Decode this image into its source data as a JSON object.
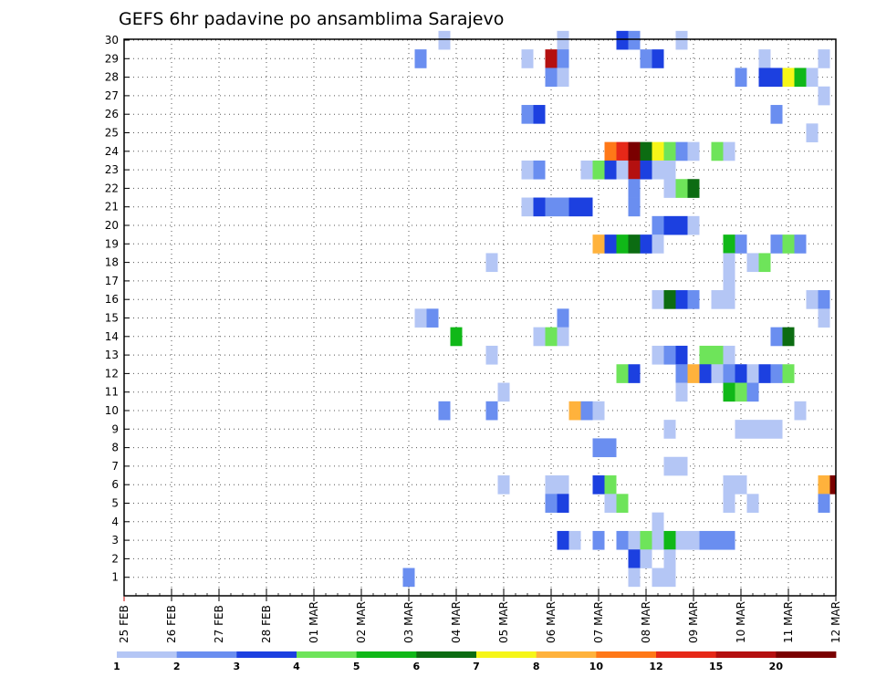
{
  "chart_data": {
    "type": "heatmap",
    "title": "GEFS 6hr padavine po ansamblima Sarajevo",
    "xlabel": "",
    "ylabel": "",
    "y_ticks": [
      "1",
      "2",
      "3",
      "4",
      "5",
      "6",
      "7",
      "8",
      "9",
      "10",
      "11",
      "12",
      "13",
      "14",
      "15",
      "16",
      "17",
      "18",
      "19",
      "20",
      "21",
      "22",
      "23",
      "24",
      "25",
      "26",
      "27",
      "28",
      "29",
      "30"
    ],
    "x_ticks": [
      "25 FEB",
      "26 FEB",
      "27 FEB",
      "28 FEB",
      "01 MAR",
      "02 MAR",
      "03 MAR",
      "04 MAR",
      "05 MAR",
      "06 MAR",
      "07 MAR",
      "08 MAR",
      "09 MAR",
      "10 MAR",
      "11 MAR",
      "12 MAR"
    ],
    "x_range_steps": [
      0,
      60
    ],
    "steps_per_day": 4,
    "colorbar": {
      "labels": [
        "1",
        "2",
        "3",
        "4",
        "5",
        "6",
        "7",
        "8",
        "10",
        "12",
        "15",
        "20"
      ],
      "colors": [
        "#b4c6f5",
        "#6a8ef0",
        "#1c40e0",
        "#6ee45a",
        "#10b818",
        "#0c6c12",
        "#f6f618",
        "#ffb23c",
        "#ff7818",
        "#e62818",
        "#b41010",
        "#7a0000"
      ]
    },
    "units_note": "cells: member (1-30) x 6-hour step index from 25 FEB 00Z; value = color class index 0-11 of colorbar",
    "cells": [
      [
        30,
        27,
        0
      ],
      [
        30,
        37,
        0
      ],
      [
        30,
        42,
        2
      ],
      [
        30,
        43,
        1
      ],
      [
        30,
        47,
        0
      ],
      [
        29,
        25,
        1
      ],
      [
        29,
        34,
        0
      ],
      [
        29,
        36,
        10
      ],
      [
        29,
        37,
        1
      ],
      [
        29,
        44,
        1
      ],
      [
        29,
        45,
        2
      ],
      [
        29,
        54,
        0
      ],
      [
        29,
        59,
        0
      ],
      [
        28,
        36,
        1
      ],
      [
        28,
        37,
        0
      ],
      [
        28,
        52,
        1
      ],
      [
        28,
        54,
        2
      ],
      [
        28,
        55,
        2
      ],
      [
        28,
        56,
        6
      ],
      [
        28,
        57,
        4
      ],
      [
        28,
        58,
        0
      ],
      [
        27,
        59,
        0
      ],
      [
        26,
        34,
        1
      ],
      [
        26,
        35,
        2
      ],
      [
        26,
        55,
        1
      ],
      [
        25,
        58,
        0
      ],
      [
        24,
        41,
        8
      ],
      [
        24,
        42,
        9
      ],
      [
        24,
        43,
        11
      ],
      [
        24,
        44,
        5
      ],
      [
        24,
        45,
        6
      ],
      [
        24,
        46,
        3
      ],
      [
        24,
        47,
        1
      ],
      [
        24,
        48,
        0
      ],
      [
        24,
        50,
        3
      ],
      [
        24,
        51,
        0
      ],
      [
        23,
        34,
        0
      ],
      [
        23,
        35,
        1
      ],
      [
        23,
        39,
        0
      ],
      [
        23,
        40,
        3
      ],
      [
        23,
        41,
        2
      ],
      [
        23,
        42,
        0
      ],
      [
        23,
        43,
        10
      ],
      [
        23,
        44,
        2
      ],
      [
        23,
        45,
        0
      ],
      [
        23,
        46,
        0
      ],
      [
        22,
        43,
        1
      ],
      [
        22,
        46,
        0
      ],
      [
        22,
        47,
        3
      ],
      [
        22,
        48,
        5
      ],
      [
        21,
        34,
        0
      ],
      [
        21,
        35,
        2
      ],
      [
        21,
        36,
        1
      ],
      [
        21,
        37,
        1
      ],
      [
        21,
        38,
        2
      ],
      [
        21,
        39,
        2
      ],
      [
        21,
        43,
        1
      ],
      [
        20,
        45,
        1
      ],
      [
        20,
        46,
        2
      ],
      [
        20,
        47,
        2
      ],
      [
        20,
        48,
        0
      ],
      [
        19,
        40,
        7
      ],
      [
        19,
        41,
        2
      ],
      [
        19,
        42,
        4
      ],
      [
        19,
        43,
        5
      ],
      [
        19,
        44,
        2
      ],
      [
        19,
        45,
        0
      ],
      [
        19,
        51,
        4
      ],
      [
        19,
        52,
        1
      ],
      [
        19,
        55,
        1
      ],
      [
        19,
        56,
        3
      ],
      [
        19,
        57,
        1
      ],
      [
        18,
        31,
        0
      ],
      [
        18,
        51,
        0
      ],
      [
        18,
        53,
        0
      ],
      [
        18,
        54,
        3
      ],
      [
        17,
        51,
        0
      ],
      [
        16,
        45,
        0
      ],
      [
        16,
        46,
        5
      ],
      [
        16,
        47,
        2
      ],
      [
        16,
        48,
        1
      ],
      [
        16,
        50,
        0
      ],
      [
        16,
        51,
        0
      ],
      [
        16,
        58,
        0
      ],
      [
        16,
        59,
        1
      ],
      [
        15,
        25,
        0
      ],
      [
        15,
        26,
        1
      ],
      [
        15,
        37,
        1
      ],
      [
        15,
        59,
        0
      ],
      [
        14,
        28,
        4
      ],
      [
        14,
        35,
        0
      ],
      [
        14,
        36,
        3
      ],
      [
        14,
        37,
        0
      ],
      [
        14,
        55,
        1
      ],
      [
        14,
        56,
        5
      ],
      [
        13,
        31,
        0
      ],
      [
        13,
        45,
        0
      ],
      [
        13,
        46,
        1
      ],
      [
        13,
        47,
        2
      ],
      [
        13,
        49,
        3
      ],
      [
        13,
        50,
        3
      ],
      [
        13,
        51,
        0
      ],
      [
        12,
        42,
        3
      ],
      [
        12,
        43,
        2
      ],
      [
        12,
        47,
        1
      ],
      [
        12,
        48,
        7
      ],
      [
        12,
        49,
        2
      ],
      [
        12,
        50,
        0
      ],
      [
        12,
        51,
        1
      ],
      [
        12,
        52,
        2
      ],
      [
        12,
        53,
        0
      ],
      [
        12,
        54,
        2
      ],
      [
        12,
        55,
        1
      ],
      [
        12,
        56,
        3
      ],
      [
        11,
        32,
        0
      ],
      [
        11,
        47,
        0
      ],
      [
        11,
        51,
        4
      ],
      [
        11,
        52,
        3
      ],
      [
        11,
        53,
        1
      ],
      [
        10,
        27,
        1
      ],
      [
        10,
        31,
        1
      ],
      [
        10,
        38,
        7
      ],
      [
        10,
        39,
        1
      ],
      [
        10,
        40,
        0
      ],
      [
        10,
        57,
        0
      ],
      [
        9,
        46,
        0
      ],
      [
        9,
        52,
        0
      ],
      [
        9,
        53,
        0
      ],
      [
        9,
        54,
        0
      ],
      [
        9,
        55,
        0
      ],
      [
        8,
        40,
        1
      ],
      [
        8,
        41,
        1
      ],
      [
        7,
        46,
        0
      ],
      [
        7,
        47,
        0
      ],
      [
        6,
        32,
        0
      ],
      [
        6,
        36,
        0
      ],
      [
        6,
        37,
        0
      ],
      [
        6,
        40,
        2
      ],
      [
        6,
        41,
        3
      ],
      [
        6,
        51,
        0
      ],
      [
        6,
        52,
        0
      ],
      [
        6,
        59,
        7
      ],
      [
        6,
        60,
        11
      ],
      [
        5,
        36,
        1
      ],
      [
        5,
        37,
        2
      ],
      [
        5,
        41,
        0
      ],
      [
        5,
        42,
        3
      ],
      [
        5,
        51,
        0
      ],
      [
        5,
        53,
        0
      ],
      [
        5,
        59,
        1
      ],
      [
        4,
        45,
        0
      ],
      [
        3,
        37,
        2
      ],
      [
        3,
        38,
        0
      ],
      [
        3,
        40,
        1
      ],
      [
        3,
        42,
        1
      ],
      [
        3,
        43,
        0
      ],
      [
        3,
        44,
        3
      ],
      [
        3,
        45,
        0
      ],
      [
        3,
        46,
        4
      ],
      [
        3,
        47,
        0
      ],
      [
        3,
        48,
        0
      ],
      [
        3,
        49,
        1
      ],
      [
        3,
        50,
        1
      ],
      [
        3,
        51,
        1
      ],
      [
        2,
        43,
        2
      ],
      [
        2,
        44,
        0
      ],
      [
        2,
        46,
        0
      ],
      [
        1,
        24,
        1
      ],
      [
        1,
        43,
        0
      ],
      [
        1,
        45,
        0
      ],
      [
        1,
        46,
        0
      ]
    ]
  }
}
